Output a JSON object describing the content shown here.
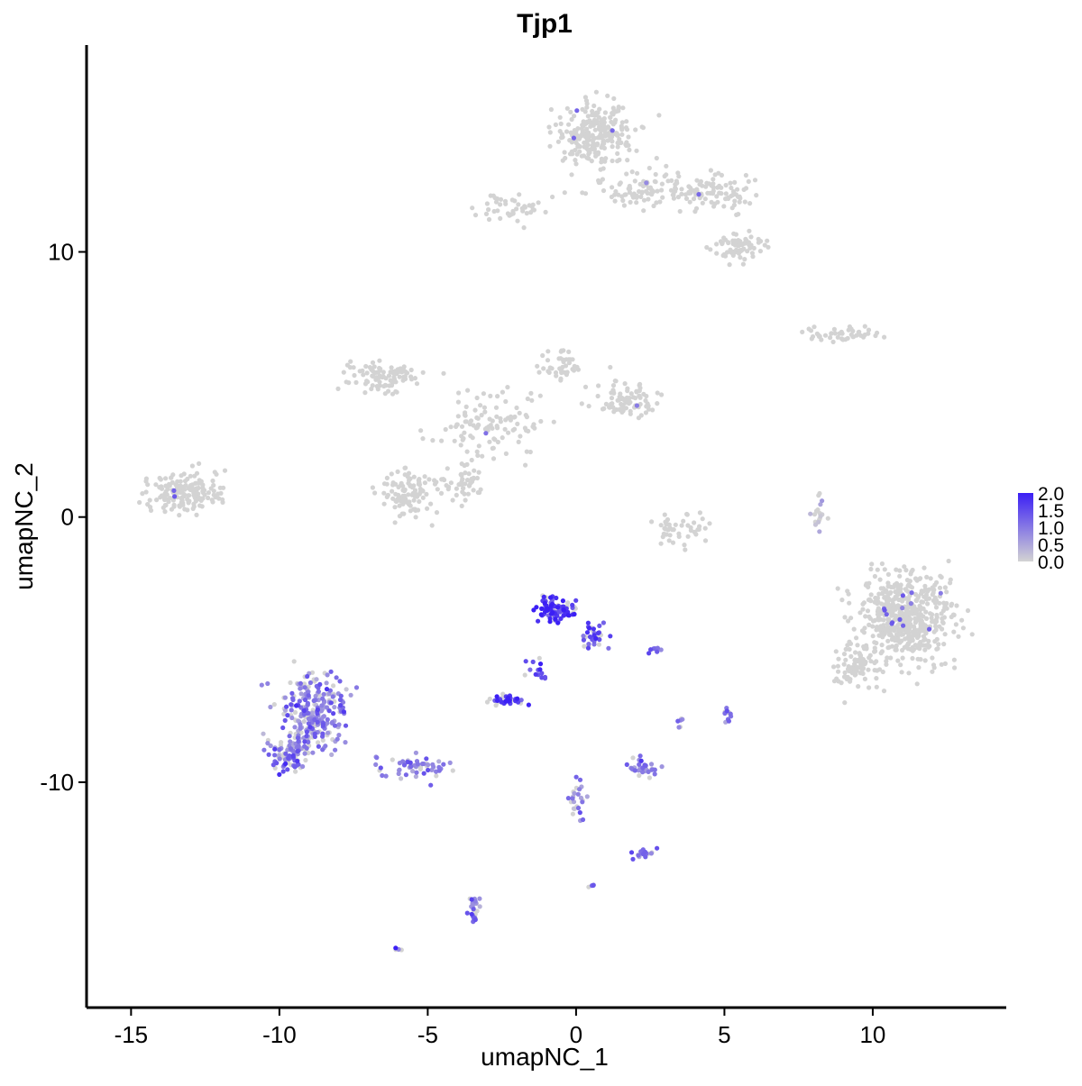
{
  "chart_data": {
    "type": "scatter",
    "title": "Tjp1",
    "xlabel": "umapNC_1",
    "ylabel": "umapNC_2",
    "xlim": [
      -16.5,
      14.5
    ],
    "ylim": [
      -18.5,
      17.8
    ],
    "x_ticks": [
      -15,
      -10,
      -5,
      0,
      5,
      10
    ],
    "x_tick_labels": [
      "-15",
      "-10",
      "-5",
      "0",
      "5",
      "10"
    ],
    "y_ticks": [
      -10,
      0,
      10
    ],
    "y_tick_labels": [
      "-10",
      "0",
      "10"
    ],
    "grid": false,
    "legend": {
      "placement": "right",
      "type": "colorbar",
      "range": [
        0,
        2.0
      ],
      "tick_values": [
        0.0,
        0.5,
        1.0,
        1.5,
        2.0
      ],
      "tick_labels": [
        "0.0",
        "0.5",
        "1.0",
        "1.5",
        "2.0"
      ],
      "low_color": "#d3d3d3",
      "high_color": "#3b1ff5"
    },
    "clusters": [
      {
        "cx": 0.7,
        "cy": 14.5,
        "sx": 1.0,
        "sy": 1.0,
        "n": 260,
        "expr": 0.0
      },
      {
        "cx": 2.5,
        "cy": 12.4,
        "sx": 1.8,
        "sy": 0.6,
        "n": 110,
        "expr": 0.0
      },
      {
        "cx": 4.8,
        "cy": 12.2,
        "sx": 1.0,
        "sy": 0.6,
        "n": 70,
        "expr": 0.0
      },
      {
        "cx": 5.5,
        "cy": 10.2,
        "sx": 0.9,
        "sy": 0.5,
        "n": 70,
        "expr": 0.0
      },
      {
        "cx": -2.2,
        "cy": 11.7,
        "sx": 0.8,
        "sy": 0.4,
        "n": 45,
        "expr": 0.0
      },
      {
        "cx": 9.0,
        "cy": 6.9,
        "sx": 1.0,
        "sy": 0.25,
        "n": 45,
        "expr": 0.0
      },
      {
        "cx": -13.3,
        "cy": 0.9,
        "sx": 1.0,
        "sy": 0.6,
        "n": 170,
        "expr": 0.0
      },
      {
        "cx": -6.5,
        "cy": 5.3,
        "sx": 1.0,
        "sy": 0.5,
        "n": 90,
        "expr": 0.0
      },
      {
        "cx": -5.6,
        "cy": 0.9,
        "sx": 0.8,
        "sy": 0.7,
        "n": 110,
        "expr": 0.0
      },
      {
        "cx": -3.8,
        "cy": 1.3,
        "sx": 0.5,
        "sy": 0.6,
        "n": 50,
        "expr": 0.0
      },
      {
        "cx": -3.0,
        "cy": 3.5,
        "sx": 1.6,
        "sy": 1.0,
        "n": 110,
        "expr": 0.0
      },
      {
        "cx": 1.7,
        "cy": 4.4,
        "sx": 0.8,
        "sy": 0.6,
        "n": 90,
        "expr": 0.0
      },
      {
        "cx": -0.6,
        "cy": 5.8,
        "sx": 0.5,
        "sy": 0.5,
        "n": 40,
        "expr": 0.0
      },
      {
        "cx": 3.4,
        "cy": -0.5,
        "sx": 0.8,
        "sy": 0.6,
        "n": 45,
        "expr": 0.0
      },
      {
        "cx": 11.0,
        "cy": -3.8,
        "sx": 1.2,
        "sy": 1.4,
        "n": 560,
        "expr": 0.0
      },
      {
        "cx": 9.4,
        "cy": -5.6,
        "sx": 0.7,
        "sy": 0.7,
        "n": 80,
        "expr": 0.0
      },
      {
        "cx": 8.2,
        "cy": 0.3,
        "sx": 0.2,
        "sy": 0.7,
        "n": 18,
        "expr": 0.1
      },
      {
        "cx": -0.7,
        "cy": -3.5,
        "sx": 0.5,
        "sy": 0.4,
        "n": 95,
        "expr": 1.8
      },
      {
        "cx": 0.6,
        "cy": -4.5,
        "sx": 0.4,
        "sy": 0.5,
        "n": 35,
        "expr": 1.4
      },
      {
        "cx": -2.4,
        "cy": -6.9,
        "sx": 0.45,
        "sy": 0.2,
        "n": 40,
        "expr": 1.6
      },
      {
        "cx": -1.3,
        "cy": -5.8,
        "sx": 0.3,
        "sy": 0.5,
        "n": 14,
        "expr": 1.6
      },
      {
        "cx": -8.9,
        "cy": -7.4,
        "sx": 0.9,
        "sy": 1.1,
        "n": 260,
        "expr": 0.9
      },
      {
        "cx": -9.7,
        "cy": -9.0,
        "sx": 0.6,
        "sy": 0.5,
        "n": 90,
        "expr": 1.0
      },
      {
        "cx": -5.6,
        "cy": -9.5,
        "sx": 1.0,
        "sy": 0.4,
        "n": 60,
        "expr": 0.9
      },
      {
        "cx": 2.3,
        "cy": -9.5,
        "sx": 0.5,
        "sy": 0.3,
        "n": 35,
        "expr": 1.0
      },
      {
        "cx": 2.4,
        "cy": -12.7,
        "sx": 0.4,
        "sy": 0.2,
        "n": 18,
        "expr": 1.0
      },
      {
        "cx": 0.0,
        "cy": -10.6,
        "sx": 0.3,
        "sy": 0.9,
        "n": 25,
        "expr": 0.9
      },
      {
        "cx": -3.4,
        "cy": -14.8,
        "sx": 0.2,
        "sy": 0.5,
        "n": 25,
        "expr": 1.0
      },
      {
        "cx": 5.1,
        "cy": -7.4,
        "sx": 0.15,
        "sy": 0.3,
        "n": 12,
        "expr": 0.9
      },
      {
        "cx": 3.5,
        "cy": -7.7,
        "sx": 0.1,
        "sy": 0.2,
        "n": 6,
        "expr": 0.8
      },
      {
        "cx": 2.6,
        "cy": -5.0,
        "sx": 0.25,
        "sy": 0.1,
        "n": 8,
        "expr": 1.4
      },
      {
        "cx": -6.0,
        "cy": -16.3,
        "sx": 0.1,
        "sy": 0.05,
        "n": 4,
        "expr": 1.8
      },
      {
        "cx": 0.6,
        "cy": -13.9,
        "sx": 0.1,
        "sy": 0.05,
        "n": 4,
        "expr": 1.0
      }
    ]
  }
}
